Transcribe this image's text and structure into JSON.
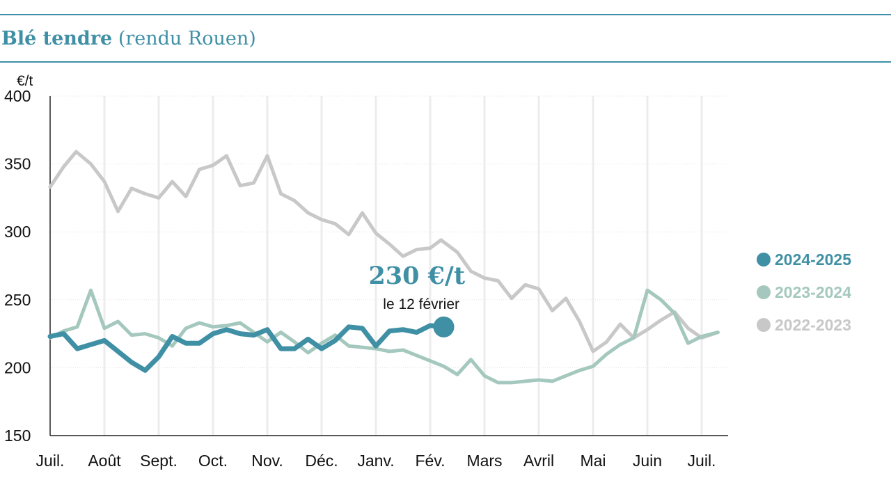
{
  "header": {
    "title_bold": "Blé tendre",
    "title_rest": "(rendu Rouen)"
  },
  "chart_data": {
    "type": "line",
    "ylabel": "€/t",
    "ylim": [
      150,
      400
    ],
    "yticks": [
      400,
      350,
      300,
      250,
      200,
      150
    ],
    "months": [
      "Juil.",
      "Août",
      "Sept.",
      "Oct.",
      "Nov.",
      "Déc.",
      "Janv.",
      "Fév.",
      "Mars",
      "Avril",
      "Mai",
      "Juin",
      "Juil."
    ],
    "grid": true,
    "legend_position": "right",
    "series": [
      {
        "name": "2022-2023",
        "color": "#c8c8c8",
        "points": [
          [
            0.0,
            333
          ],
          [
            0.25,
            348
          ],
          [
            0.48,
            359
          ],
          [
            0.75,
            350
          ],
          [
            1.0,
            337
          ],
          [
            1.25,
            315
          ],
          [
            1.5,
            332
          ],
          [
            1.75,
            328
          ],
          [
            2.0,
            325
          ],
          [
            2.25,
            337
          ],
          [
            2.5,
            326
          ],
          [
            2.75,
            346
          ],
          [
            3.0,
            349
          ],
          [
            3.25,
            356
          ],
          [
            3.5,
            334
          ],
          [
            3.75,
            336
          ],
          [
            4.0,
            356
          ],
          [
            4.25,
            328
          ],
          [
            4.5,
            323
          ],
          [
            4.75,
            314
          ],
          [
            5.0,
            309
          ],
          [
            5.25,
            306
          ],
          [
            5.5,
            298
          ],
          [
            5.75,
            314
          ],
          [
            6.0,
            299
          ],
          [
            6.25,
            291
          ],
          [
            6.5,
            282
          ],
          [
            6.75,
            287
          ],
          [
            7.0,
            288
          ],
          [
            7.2,
            294
          ],
          [
            7.5,
            285
          ],
          [
            7.75,
            271
          ],
          [
            8.0,
            266
          ],
          [
            8.25,
            264
          ],
          [
            8.5,
            251
          ],
          [
            8.75,
            261
          ],
          [
            9.0,
            258
          ],
          [
            9.25,
            242
          ],
          [
            9.5,
            251
          ],
          [
            9.75,
            234
          ],
          [
            10.0,
            212
          ],
          [
            10.25,
            219
          ],
          [
            10.5,
            232
          ],
          [
            10.75,
            222
          ],
          [
            11.0,
            228
          ],
          [
            11.25,
            235
          ],
          [
            11.5,
            241
          ],
          [
            11.75,
            229
          ],
          [
            12.0,
            222
          ],
          [
            12.3,
            226
          ]
        ]
      },
      {
        "name": "2023-2024",
        "color": "#a4c8bd",
        "points": [
          [
            0.0,
            222
          ],
          [
            0.25,
            227
          ],
          [
            0.5,
            230
          ],
          [
            0.75,
            257
          ],
          [
            1.0,
            229
          ],
          [
            1.25,
            234
          ],
          [
            1.5,
            224
          ],
          [
            1.75,
            225
          ],
          [
            2.0,
            222
          ],
          [
            2.25,
            216
          ],
          [
            2.5,
            229
          ],
          [
            2.75,
            233
          ],
          [
            3.0,
            230
          ],
          [
            3.25,
            231
          ],
          [
            3.5,
            233
          ],
          [
            3.75,
            226
          ],
          [
            4.0,
            219
          ],
          [
            4.25,
            226
          ],
          [
            4.5,
            219
          ],
          [
            4.75,
            211
          ],
          [
            5.0,
            218
          ],
          [
            5.25,
            224
          ],
          [
            5.5,
            216
          ],
          [
            5.75,
            215
          ],
          [
            6.0,
            214
          ],
          [
            6.25,
            212
          ],
          [
            6.5,
            213
          ],
          [
            6.75,
            209
          ],
          [
            7.0,
            205
          ],
          [
            7.25,
            201
          ],
          [
            7.5,
            195
          ],
          [
            7.75,
            206
          ],
          [
            8.0,
            194
          ],
          [
            8.25,
            189
          ],
          [
            8.5,
            189
          ],
          [
            8.75,
            190
          ],
          [
            9.0,
            191
          ],
          [
            9.25,
            190
          ],
          [
            9.5,
            194
          ],
          [
            9.75,
            198
          ],
          [
            10.0,
            201
          ],
          [
            10.25,
            210
          ],
          [
            10.5,
            217
          ],
          [
            10.75,
            222
          ],
          [
            11.0,
            257
          ],
          [
            11.25,
            250
          ],
          [
            11.5,
            240
          ],
          [
            11.75,
            218
          ],
          [
            12.0,
            223
          ],
          [
            12.3,
            226
          ]
        ]
      },
      {
        "name": "2024-2025",
        "color": "#3f8fa5",
        "points": [
          [
            0.0,
            223
          ],
          [
            0.25,
            225
          ],
          [
            0.5,
            214
          ],
          [
            0.75,
            217
          ],
          [
            1.0,
            220
          ],
          [
            1.25,
            212
          ],
          [
            1.5,
            204
          ],
          [
            1.75,
            198
          ],
          [
            2.0,
            208
          ],
          [
            2.25,
            223
          ],
          [
            2.5,
            218
          ],
          [
            2.75,
            218
          ],
          [
            3.0,
            225
          ],
          [
            3.25,
            228
          ],
          [
            3.5,
            225
          ],
          [
            3.75,
            224
          ],
          [
            4.0,
            228
          ],
          [
            4.25,
            214
          ],
          [
            4.5,
            214
          ],
          [
            4.75,
            221
          ],
          [
            5.0,
            214
          ],
          [
            5.25,
            220
          ],
          [
            5.5,
            230
          ],
          [
            5.75,
            229
          ],
          [
            6.0,
            216
          ],
          [
            6.25,
            227
          ],
          [
            6.5,
            228
          ],
          [
            6.75,
            226
          ],
          [
            7.0,
            231
          ],
          [
            7.25,
            230
          ]
        ]
      }
    ],
    "annotation": {
      "value": "230 €/t",
      "date": "le 12 février",
      "at": [
        7.25,
        230
      ]
    }
  }
}
